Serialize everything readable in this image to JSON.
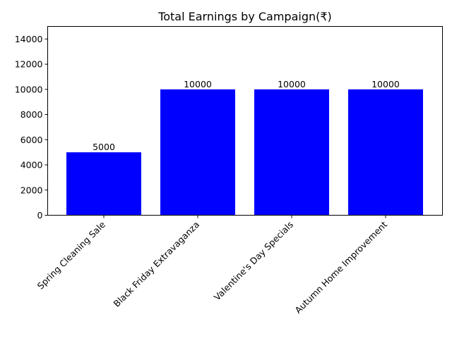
{
  "chart_data": {
    "type": "bar",
    "title": "Total Earnings by Campaign(₹)",
    "xlabel": "",
    "ylabel": "",
    "categories": [
      "Spring Cleaning Sale",
      "Black Friday Extravaganza",
      "Valentine's Day Specials",
      "Autumn Home Improvement"
    ],
    "values": [
      5000,
      10000,
      10000,
      10000
    ],
    "data_labels": [
      "5000",
      "10000",
      "10000",
      "10000"
    ],
    "ylim": [
      0,
      15000
    ],
    "yticks": [
      0,
      2000,
      4000,
      6000,
      8000,
      10000,
      12000,
      14000
    ],
    "ytick_labels": [
      "0",
      "2000",
      "4000",
      "6000",
      "8000",
      "10000",
      "12000",
      "14000"
    ],
    "bar_color": "#0000ff",
    "grid": false,
    "legend": "none"
  }
}
